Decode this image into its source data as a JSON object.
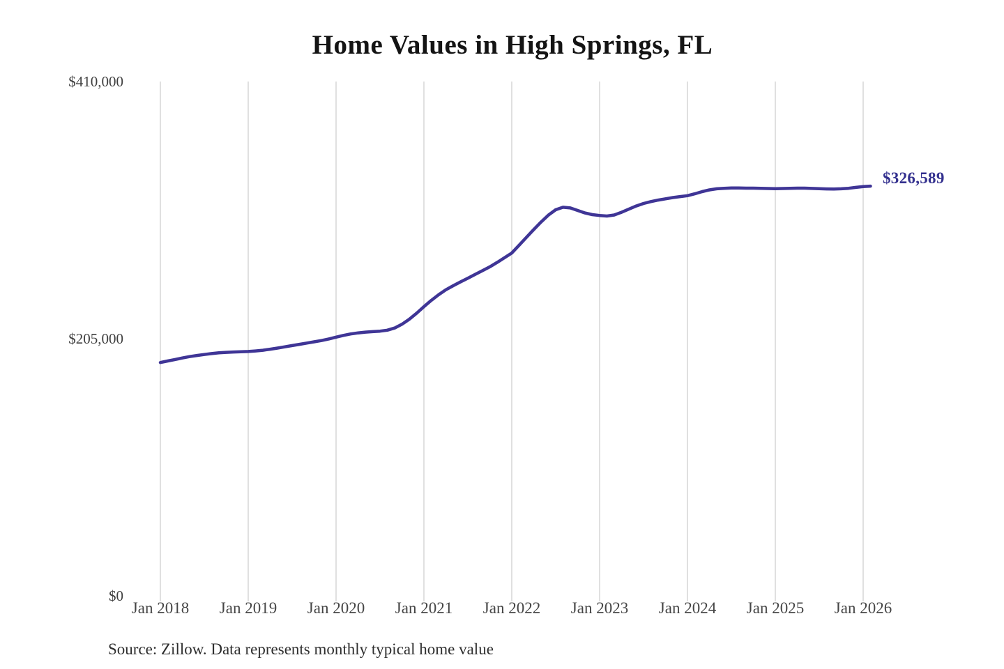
{
  "chart": {
    "title": "Home Values in High Springs, FL",
    "source": "Source: Zillow. Data represents monthly typical home value",
    "end_label": "$326,589",
    "colors": {
      "line": "#3f3596",
      "end_label": "#33308e",
      "gridline": "#cbcbcb",
      "title": "#141414",
      "axis_text": "#454545"
    }
  },
  "chart_data": {
    "type": "line",
    "title": "Home Values in High Springs, FL",
    "xlabel": "",
    "ylabel": "",
    "x_start": "Jan 2018",
    "x_end": "Feb 2026",
    "x_tick_labels": [
      "Jan 2018",
      "Jan 2019",
      "Jan 2020",
      "Jan 2021",
      "Jan 2022",
      "Jan 2023",
      "Jan 2024",
      "Jan 2025",
      "Jan 2026"
    ],
    "y_ticks": [
      410000,
      205000,
      0
    ],
    "y_tick_labels": [
      "$410,000",
      "$205,000",
      "$0"
    ],
    "ylim": [
      0,
      410000
    ],
    "grid": "vertical-only",
    "legend": "none",
    "final_value": 326589,
    "final_value_label": "$326,589",
    "series": [
      {
        "name": "Monthly typical home value",
        "points_per_year": 12,
        "values": [
          186000,
          187200,
          188400,
          189600,
          190700,
          191600,
          192400,
          193100,
          193700,
          194100,
          194400,
          194600,
          194800,
          195200,
          195800,
          196600,
          197500,
          198500,
          199500,
          200500,
          201500,
          202500,
          203500,
          204800,
          206200,
          207600,
          208800,
          209600,
          210200,
          210600,
          211000,
          211800,
          213500,
          216500,
          220500,
          225300,
          230500,
          235500,
          240000,
          244000,
          247200,
          250300,
          253200,
          256200,
          259200,
          262300,
          265800,
          269500,
          273300,
          279500,
          285800,
          292000,
          298000,
          303500,
          307800,
          309800,
          309200,
          307200,
          305200,
          303900,
          303200,
          302800,
          303600,
          305800,
          308300,
          310800,
          312800,
          314300,
          315500,
          316500,
          317500,
          318300,
          319000,
          320500,
          322200,
          323600,
          324500,
          324900,
          325100,
          325100,
          325000,
          325000,
          324900,
          324700,
          324600,
          324700,
          324900,
          325000,
          325000,
          324800,
          324600,
          324400,
          324300,
          324500,
          324900,
          325600,
          326200,
          326589
        ]
      }
    ]
  }
}
